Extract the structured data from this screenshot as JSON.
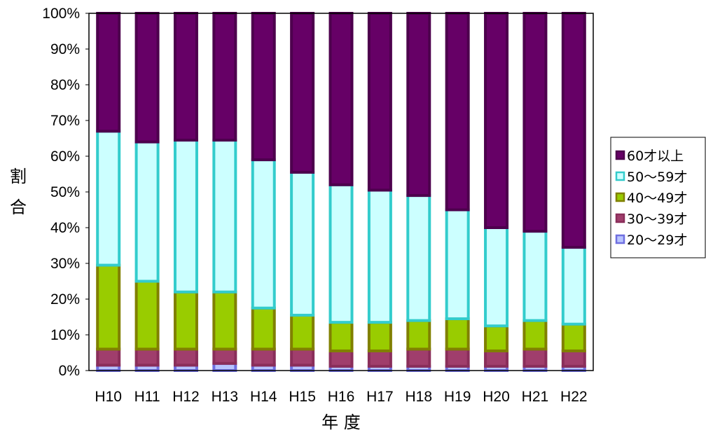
{
  "chart_data": {
    "type": "bar",
    "stacked": true,
    "percent_stacked": true,
    "categories": [
      "H10",
      "H11",
      "H12",
      "H13",
      "H14",
      "H15",
      "H16",
      "H17",
      "H18",
      "H19",
      "H20",
      "H21",
      "H22"
    ],
    "series": [
      {
        "name": "20～29才",
        "fill": "#b8c4ff",
        "border": "#6f6fe0",
        "values": [
          1.5,
          1.5,
          1.5,
          2.0,
          1.5,
          1.5,
          1.2,
          1.2,
          1.2,
          1.2,
          1.2,
          1.2,
          1.2
        ]
      },
      {
        "name": "30～39才",
        "fill": "#a03e6c",
        "border": "#8a2e5a",
        "values": [
          4.5,
          4.5,
          4.5,
          4.0,
          4.5,
          4.5,
          4.3,
          4.3,
          4.8,
          4.8,
          4.3,
          4.8,
          4.3
        ]
      },
      {
        "name": "40～49才",
        "fill": "#99cc00",
        "border": "#808000",
        "values": [
          23.5,
          19.0,
          16.0,
          16.0,
          11.5,
          9.5,
          8.0,
          8.0,
          8.0,
          8.5,
          7.0,
          8.0,
          7.5
        ]
      },
      {
        "name": "50～59才",
        "fill": "#ccffff",
        "border": "#33cccc",
        "values": [
          37.5,
          39.0,
          42.5,
          42.5,
          41.5,
          40.0,
          38.5,
          37.0,
          35.0,
          30.5,
          27.5,
          25.0,
          21.5
        ]
      },
      {
        "name": "60才以上",
        "fill": "#660066",
        "border": "#4d004d",
        "values": [
          33.0,
          36.0,
          35.5,
          35.5,
          41.0,
          44.5,
          48.0,
          49.5,
          51.0,
          55.0,
          60.0,
          61.0,
          65.5
        ]
      }
    ],
    "ylim": [
      0,
      100
    ],
    "yticks": [
      "0%",
      "10%",
      "20%",
      "30%",
      "40%",
      "50%",
      "60%",
      "70%",
      "80%",
      "90%",
      "100%"
    ],
    "xlabel": "年 度",
    "ylabel_chars": [
      "割",
      "合"
    ],
    "legend_order": [
      "60才以上",
      "50～59才",
      "40～49才",
      "30～39才",
      "20～29才"
    ],
    "legend_position": "right",
    "grid": false
  }
}
